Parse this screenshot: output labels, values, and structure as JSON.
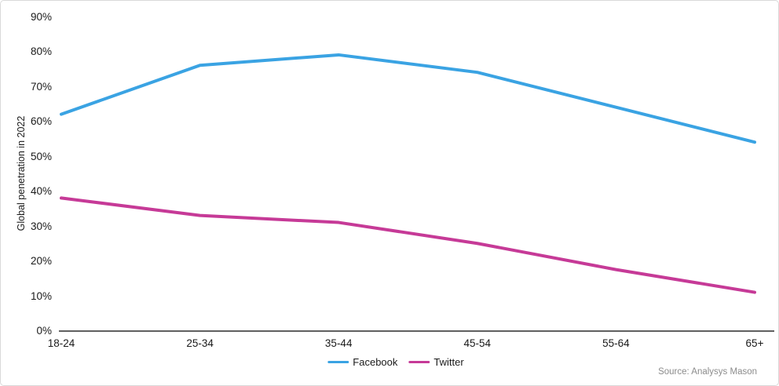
{
  "chart_data": {
    "type": "line",
    "categories": [
      "18-24",
      "25-34",
      "35-44",
      "45-54",
      "55-64",
      "65+"
    ],
    "series": [
      {
        "name": "Facebook",
        "color": "#3aa3e3",
        "values": [
          62,
          76,
          79,
          74,
          64,
          54
        ]
      },
      {
        "name": "Twitter",
        "color": "#c63a97",
        "values": [
          38,
          33,
          31,
          25,
          17.5,
          11
        ]
      }
    ],
    "title": "",
    "xlabel": "",
    "ylabel": "Global penetration in 2022",
    "ylim": [
      0,
      90
    ],
    "ytick_step": 10,
    "ytick_suffix": "%",
    "grid": false,
    "legend_position": "bottom-center",
    "axis_color": "#000000",
    "source": "Source: Analysys Mason"
  }
}
